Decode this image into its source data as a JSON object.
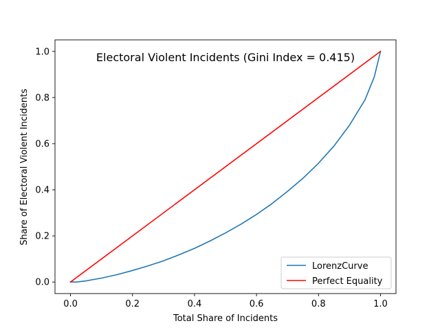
{
  "chart_data": {
    "type": "line",
    "title": "Electoral Violent Incidents (Gini Index = 0.415)",
    "xlabel": "Total Share of Incidents",
    "ylabel": "Share of Electoral Violent Incidents",
    "xlim": [
      -0.05,
      1.05
    ],
    "ylim": [
      -0.05,
      1.05
    ],
    "xticks": [
      0.0,
      0.2,
      0.4,
      0.6,
      0.8,
      1.0
    ],
    "yticks": [
      0.0,
      0.2,
      0.4,
      0.6,
      0.8,
      1.0
    ],
    "xtick_labels": [
      "0.0",
      "0.2",
      "0.4",
      "0.6",
      "0.8",
      "1.0"
    ],
    "ytick_labels": [
      "0.0",
      "0.2",
      "0.4",
      "0.6",
      "0.8",
      "1.0"
    ],
    "grid": false,
    "legend_position": "lower-right",
    "series": [
      {
        "name": "LorenzCurve",
        "color": "#1f77b4",
        "x": [
          0.0,
          0.02,
          0.05,
          0.1,
          0.15,
          0.2,
          0.25,
          0.3,
          0.35,
          0.4,
          0.45,
          0.5,
          0.55,
          0.6,
          0.65,
          0.7,
          0.75,
          0.8,
          0.85,
          0.9,
          0.95,
          0.98,
          1.0
        ],
        "y": [
          0.0,
          0.0,
          0.005,
          0.017,
          0.032,
          0.05,
          0.07,
          0.092,
          0.118,
          0.146,
          0.178,
          0.213,
          0.251,
          0.293,
          0.34,
          0.393,
          0.45,
          0.515,
          0.59,
          0.68,
          0.79,
          0.89,
          1.0
        ]
      },
      {
        "name": "Perfect Equality",
        "color": "#ff0000",
        "x": [
          0.0,
          1.0
        ],
        "y": [
          0.0,
          1.0
        ]
      }
    ]
  }
}
